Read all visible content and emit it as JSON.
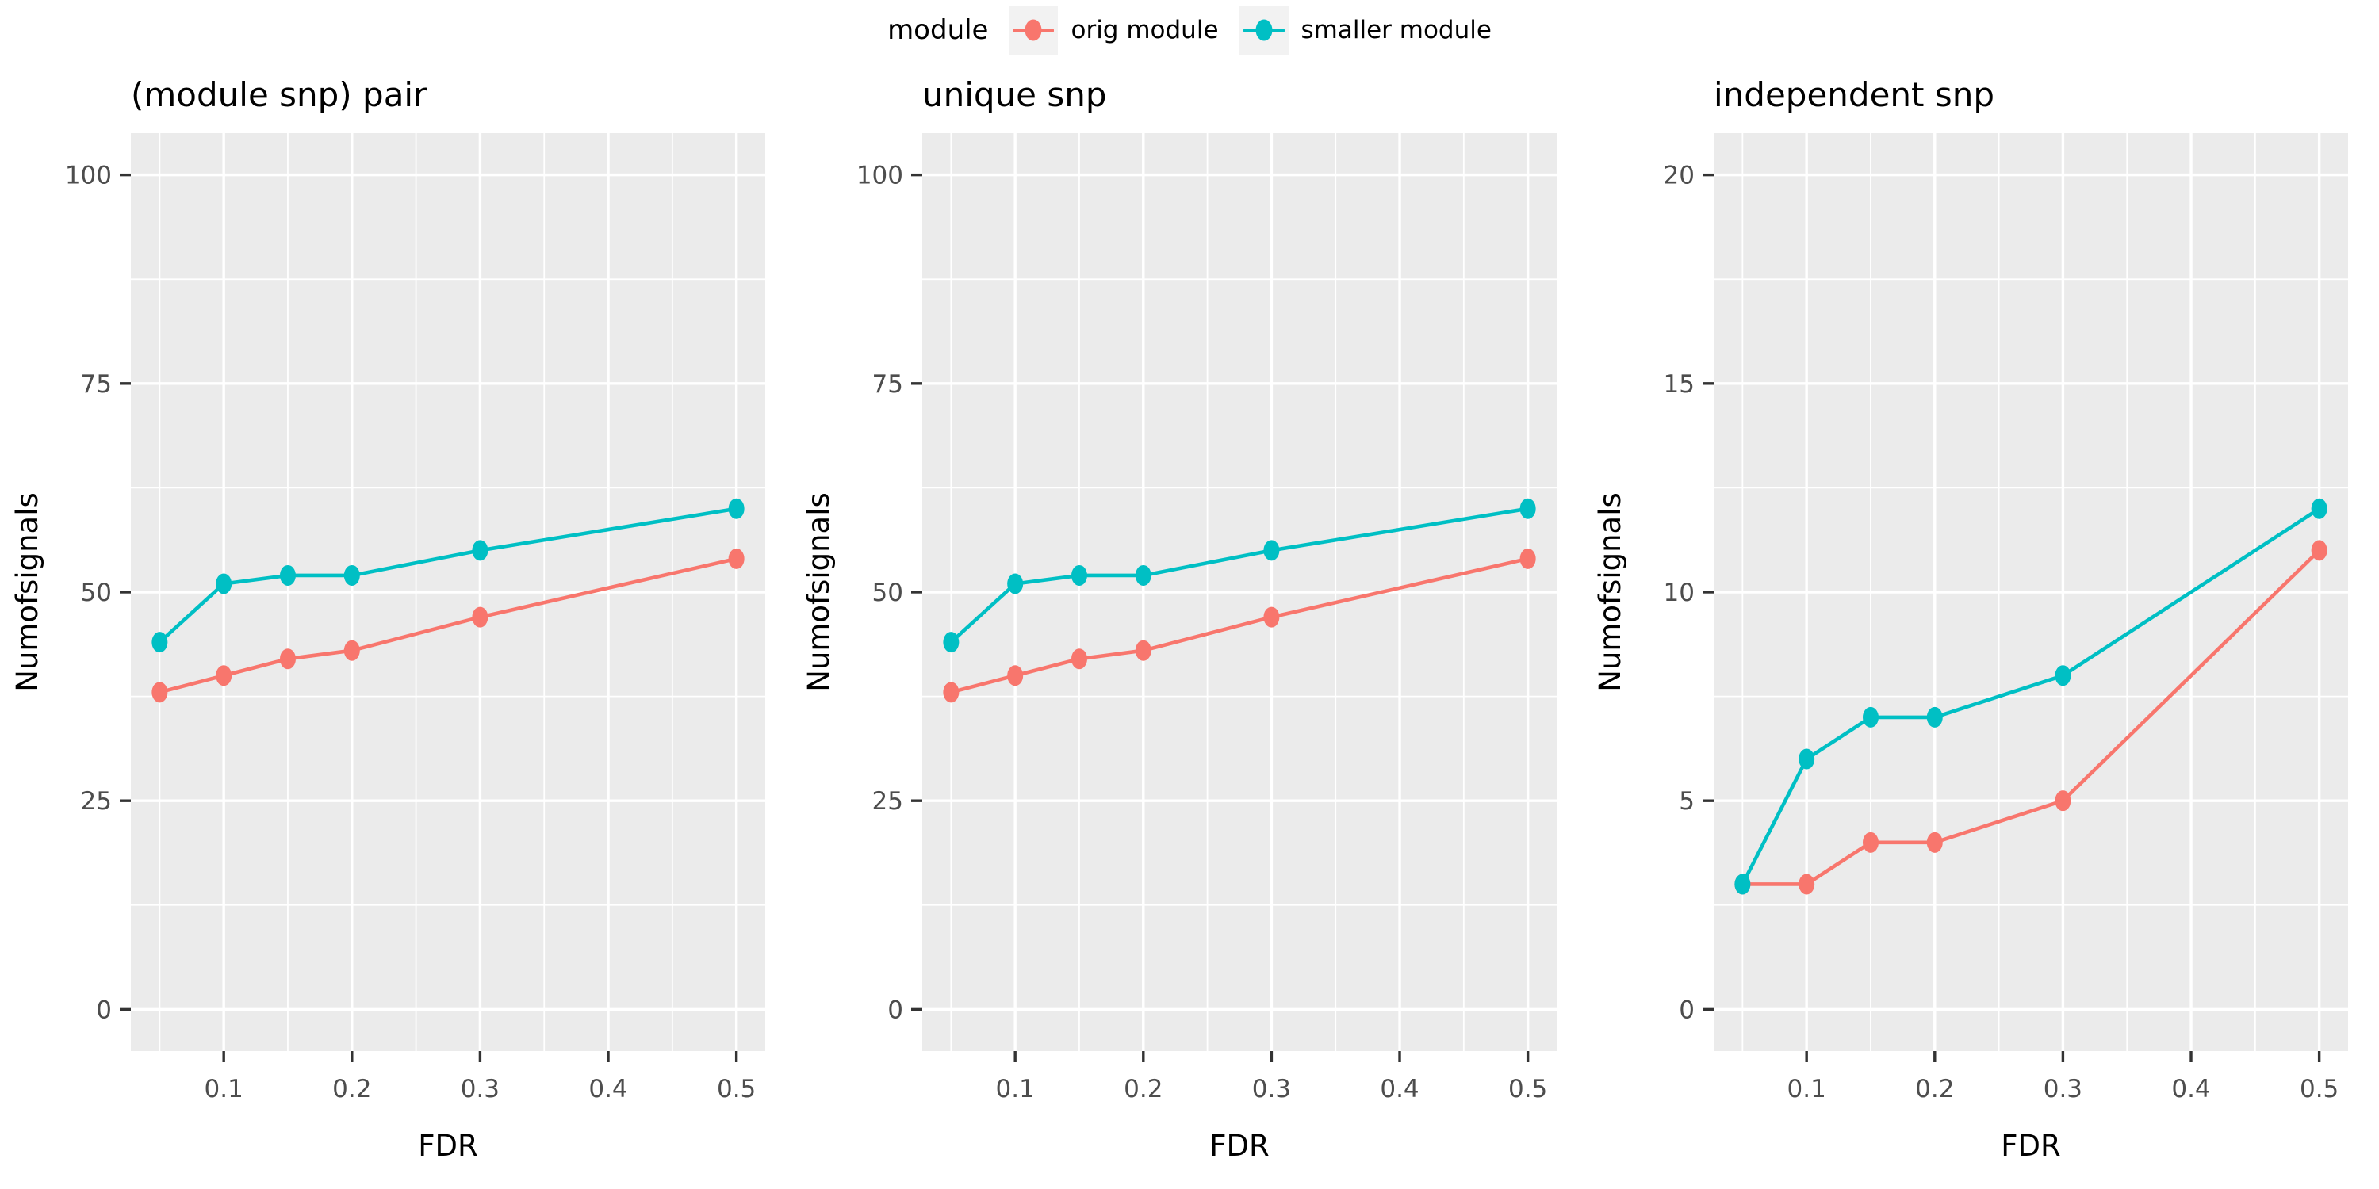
{
  "legend": {
    "title": "module",
    "keys": [
      {
        "label": "orig module",
        "color": "#F8766D"
      },
      {
        "label": "smaller module",
        "color": "#00BFC4"
      }
    ]
  },
  "styles": {
    "panel_bg": "#EBEBEB",
    "grid_color": "#FFFFFF",
    "tick_mark_color": "#333333",
    "tick_label_color": "#4D4D4D",
    "axis_title_color": "#000000",
    "title_color": "#000000",
    "legend_key_bg": "#F2F2F2"
  },
  "chart_data": [
    {
      "type": "line",
      "title": "(module snp) pair",
      "xlabel": "FDR",
      "ylabel": "Numofsignals",
      "legend_position": "top",
      "grid": true,
      "x": [
        0.05,
        0.1,
        0.15,
        0.2,
        0.3,
        0.5
      ],
      "series": [
        {
          "name": "orig module",
          "color": "#F8766D",
          "values": [
            38,
            40,
            42,
            43,
            47,
            54
          ]
        },
        {
          "name": "smaller module",
          "color": "#00BFC4",
          "values": [
            44,
            51,
            52,
            52,
            55,
            60
          ]
        }
      ],
      "xlim": [
        0.0275,
        0.5225
      ],
      "ylim": [
        -5,
        105
      ],
      "xticks": [
        0.1,
        0.2,
        0.3,
        0.4,
        0.5
      ],
      "xtick_labels": [
        "0.1",
        "0.2",
        "0.3",
        "0.4",
        "0.5"
      ],
      "yticks": [
        0,
        25,
        50,
        75,
        100
      ],
      "ytick_labels": [
        "0",
        "25",
        "50",
        "75",
        "100"
      ],
      "x_minor": [
        0.05,
        0.15,
        0.25,
        0.35,
        0.45
      ],
      "y_minor": [
        12.5,
        37.5,
        62.5,
        87.5
      ]
    },
    {
      "type": "line",
      "title": "unique snp",
      "xlabel": "FDR",
      "ylabel": "Numofsignals",
      "legend_position": "top",
      "grid": true,
      "x": [
        0.05,
        0.1,
        0.15,
        0.2,
        0.3,
        0.5
      ],
      "series": [
        {
          "name": "orig module",
          "color": "#F8766D",
          "values": [
            38,
            40,
            42,
            43,
            47,
            54
          ]
        },
        {
          "name": "smaller module",
          "color": "#00BFC4",
          "values": [
            44,
            51,
            52,
            52,
            55,
            60
          ]
        }
      ],
      "xlim": [
        0.0275,
        0.5225
      ],
      "ylim": [
        -5,
        105
      ],
      "xticks": [
        0.1,
        0.2,
        0.3,
        0.4,
        0.5
      ],
      "xtick_labels": [
        "0.1",
        "0.2",
        "0.3",
        "0.4",
        "0.5"
      ],
      "yticks": [
        0,
        25,
        50,
        75,
        100
      ],
      "ytick_labels": [
        "0",
        "25",
        "50",
        "75",
        "100"
      ],
      "x_minor": [
        0.05,
        0.15,
        0.25,
        0.35,
        0.45
      ],
      "y_minor": [
        12.5,
        37.5,
        62.5,
        87.5
      ]
    },
    {
      "type": "line",
      "title": "independent snp",
      "xlabel": "FDR",
      "ylabel": "Numofsignals",
      "legend_position": "top",
      "grid": true,
      "x": [
        0.05,
        0.1,
        0.15,
        0.2,
        0.3,
        0.5
      ],
      "series": [
        {
          "name": "orig module",
          "color": "#F8766D",
          "values": [
            3,
            3,
            4,
            4,
            5,
            11
          ]
        },
        {
          "name": "smaller module",
          "color": "#00BFC4",
          "values": [
            3,
            6,
            7,
            7,
            8,
            12
          ]
        }
      ],
      "xlim": [
        0.0275,
        0.5225
      ],
      "ylim": [
        -1,
        21
      ],
      "xticks": [
        0.1,
        0.2,
        0.3,
        0.4,
        0.5
      ],
      "xtick_labels": [
        "0.1",
        "0.2",
        "0.3",
        "0.4",
        "0.5"
      ],
      "yticks": [
        0,
        5,
        10,
        15,
        20
      ],
      "ytick_labels": [
        "0",
        "5",
        "10",
        "15",
        "20"
      ],
      "x_minor": [
        0.05,
        0.15,
        0.25,
        0.35,
        0.45
      ],
      "y_minor": [
        2.5,
        7.5,
        12.5,
        17.5
      ]
    }
  ]
}
